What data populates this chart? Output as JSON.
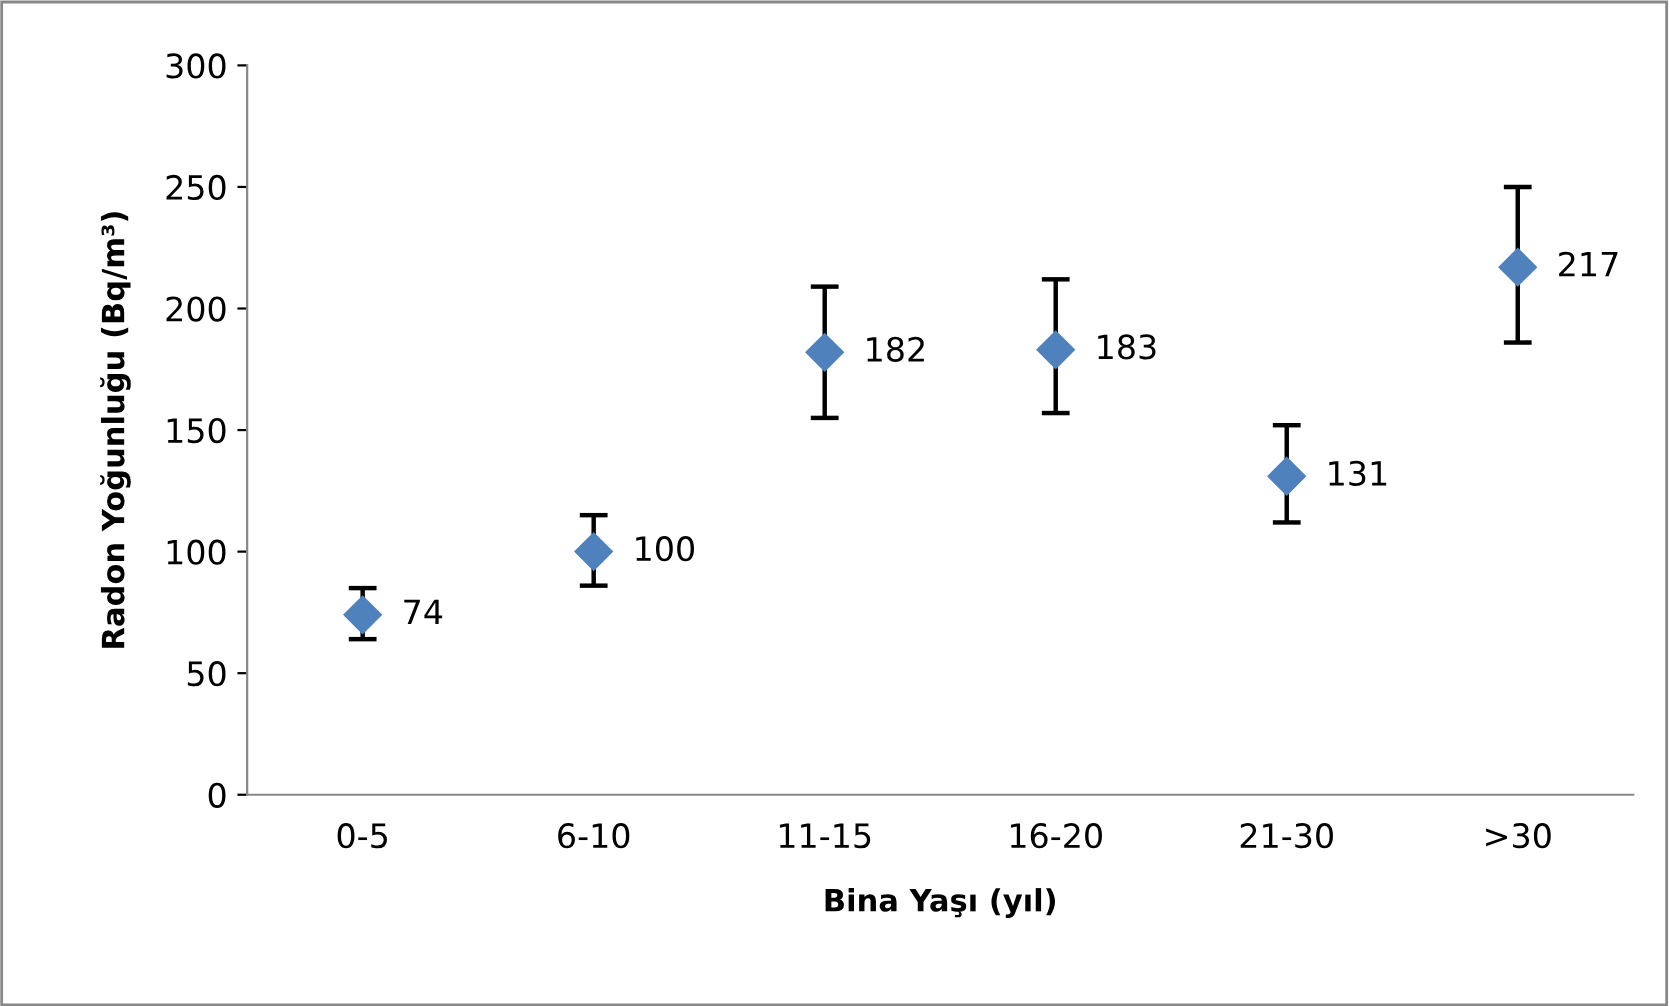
{
  "chart_data": {
    "type": "scatter",
    "xlabel": "Bina Yaşı (yıl)",
    "ylabel": "Radon Yoğunluğu (Bq/m³)",
    "categories": [
      "0-5",
      "6-10",
      "11-15",
      "16-20",
      "21-30",
      ">30"
    ],
    "series": [
      {
        "color": "#4f81bd",
        "values": [
          74,
          100,
          182,
          183,
          131,
          217
        ],
        "errors": [
          [
            64,
            85
          ],
          [
            86,
            115
          ],
          [
            155,
            209
          ],
          [
            157,
            212
          ],
          [
            112,
            152
          ],
          [
            186,
            250
          ]
        ]
      }
    ],
    "ylim": [
      0,
      300
    ],
    "yticks": [
      0,
      50,
      100,
      150,
      200,
      250,
      300
    ],
    "marker": "diamond",
    "data_labels": true,
    "grid": false,
    "legend": false
  }
}
